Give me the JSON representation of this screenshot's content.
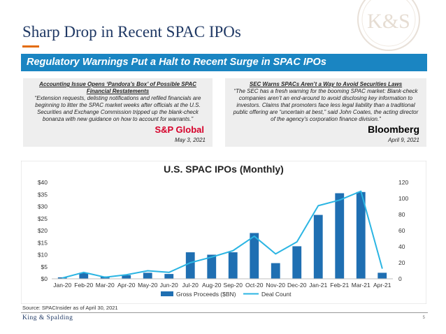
{
  "page": {
    "title": "Sharp Drop in Recent SPAC IPOs",
    "logo_text": "K&S",
    "banner": "Regulatory Warnings Put a Halt to Recent Surge in SPAC IPOs",
    "source": "Source:  SPACInsider as of April 30, 2021",
    "footer_brand": "King & Spalding",
    "page_number": "5"
  },
  "cards": {
    "left": {
      "headline": "Accounting Issue Opens ‘Pandora’s Box’ of Possible SPAC Financial Restatements",
      "quote": "“Extension requests, delisting notifications and refiled financials are beginning to litter the SPAC market weeks after officials at the U.S. Securities and Exchange Commission tripped up the blank-check bonanza with new guidance on how to account for warrants.”",
      "source_logo": "S&P Global",
      "date": "May 3, 2021"
    },
    "right": {
      "headline": "SEC Warns SPACs Aren’t a Way to Avoid Securities Laws",
      "quote": "“The SEC has a fresh warning for the booming SPAC market: Blank-check companies aren’t an end-around to avoid disclosing key information to investors. Claims that promoters face less legal liability than a traditional public offering are “uncertain at best,” said John Coates, the acting director of the agency’s corporation finance division.”",
      "source_logo": "Bloomberg",
      "date": "April 9, 2021"
    }
  },
  "colors": {
    "navy": "#1f3864",
    "banner_blue": "#1a85c2",
    "bar_blue": "#1f6fb2",
    "line_cyan": "#2bb5e3",
    "accent_orange": "#e36c09"
  },
  "chart_data": {
    "type": "bar",
    "title": "U.S. SPAC IPOs (Monthly)",
    "categories": [
      "Jan-20",
      "Feb-20",
      "Mar-20",
      "Apr-20",
      "May-20",
      "Jun-20",
      "Jul-20",
      "Aug-20",
      "Sep-20",
      "Oct-20",
      "Nov-20",
      "Dec-20",
      "Jan-21",
      "Feb-21",
      "Mar-21",
      "Apr-21"
    ],
    "series": [
      {
        "name": "Gross Proceeds ($BN)",
        "type": "bar",
        "axis": "left",
        "values": [
          0.6,
          2.5,
          1.0,
          1.5,
          2.5,
          2.0,
          11.0,
          10.0,
          11.0,
          19.0,
          6.5,
          13.5,
          26.5,
          35.5,
          36.0,
          2.5
        ]
      },
      {
        "name": "Deal Count",
        "type": "line",
        "axis": "right",
        "values": [
          1,
          8,
          2,
          5,
          10,
          8,
          20,
          27,
          35,
          53,
          31,
          46,
          91,
          98,
          109,
          13
        ]
      }
    ],
    "y_left": {
      "min": 0,
      "max": 40,
      "ticks": [
        "$0",
        "$5",
        "$10",
        "$15",
        "$20",
        "$25",
        "$30",
        "$35",
        "$40"
      ]
    },
    "y_right": {
      "min": 0,
      "max": 120,
      "ticks": [
        "0",
        "20",
        "40",
        "60",
        "80",
        "100",
        "120"
      ]
    },
    "legend_position": "bottom"
  }
}
